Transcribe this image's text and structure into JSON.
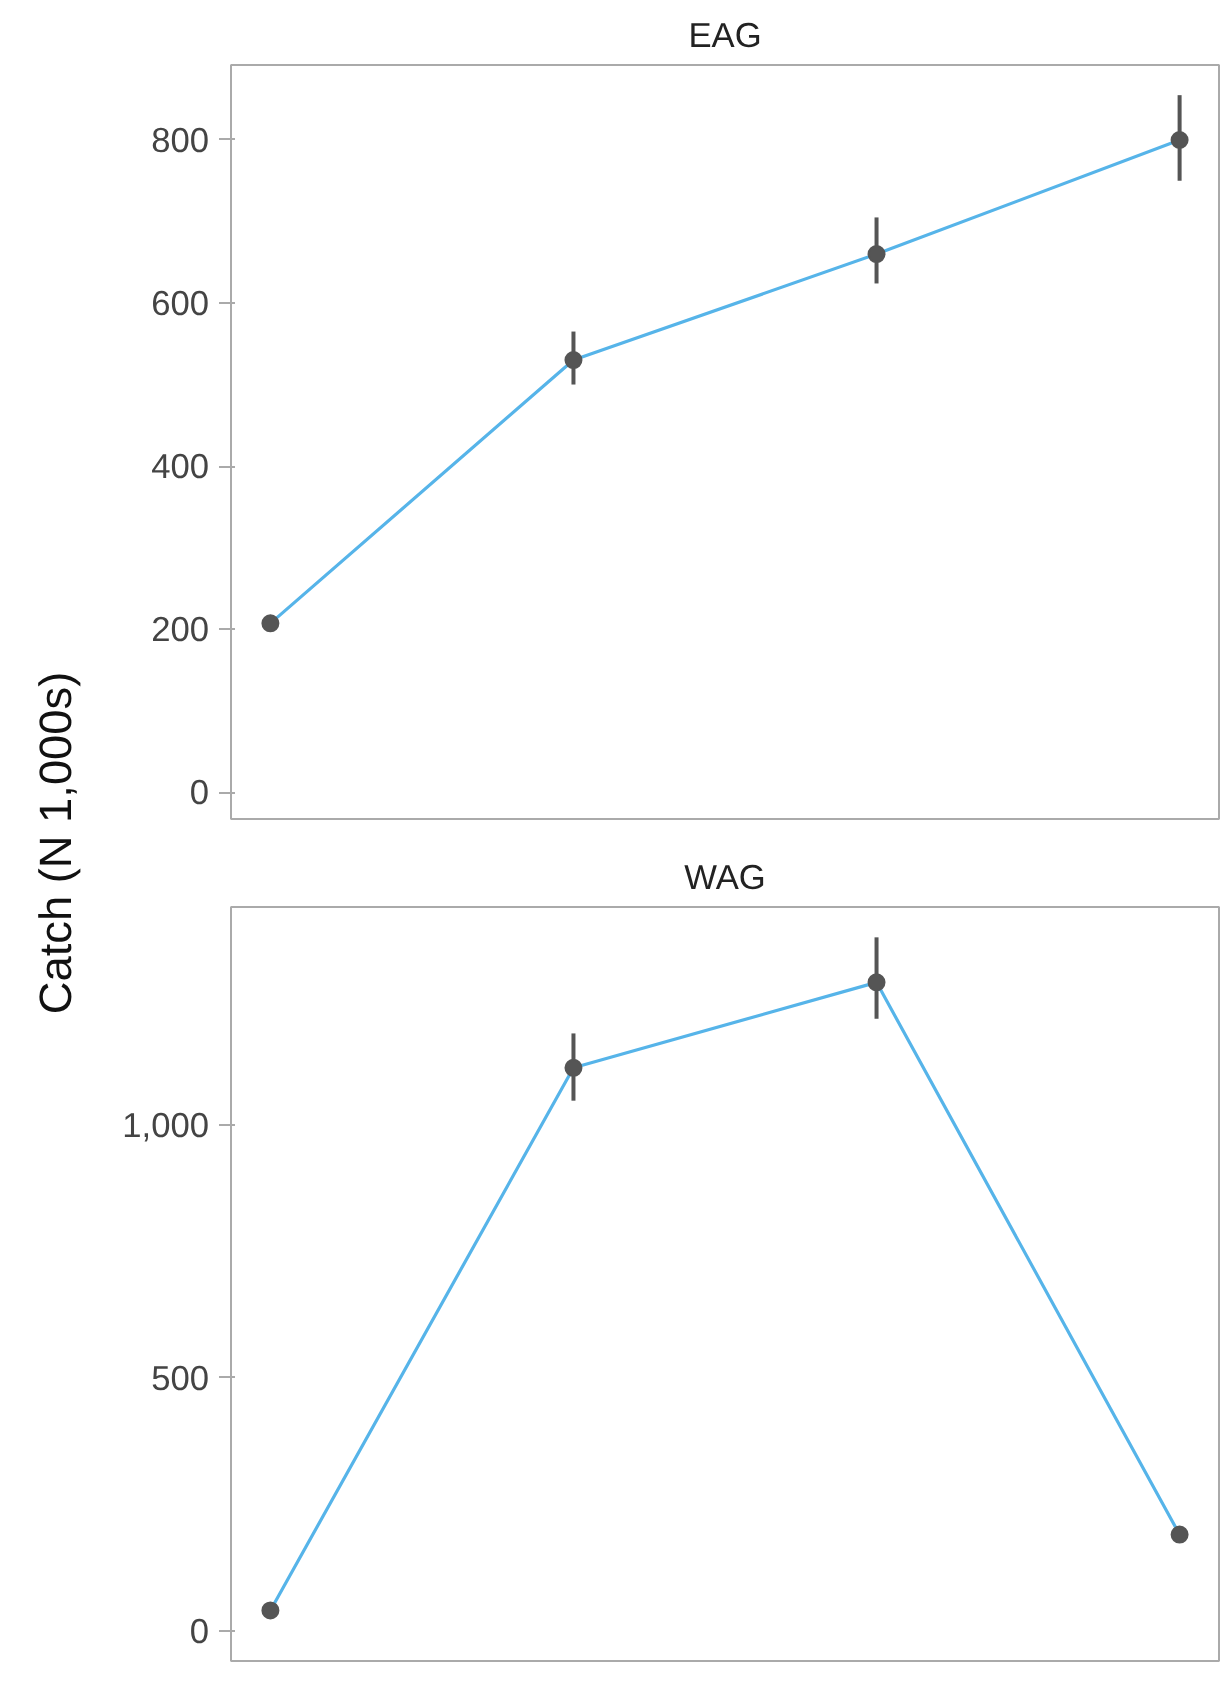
{
  "chart_data": [
    {
      "type": "line",
      "title": "EAG",
      "ylabel": "Catch (N 1,000s)",
      "categories": [
        null,
        null,
        null,
        null
      ],
      "grid": false,
      "marker": "circle",
      "series": [
        {
          "color": "#56b4e9",
          "values": [
            207,
            530,
            660,
            800
          ],
          "errors": [
            null,
            [
              500,
              565
            ],
            [
              624,
              705
            ],
            [
              750,
              855
            ]
          ]
        }
      ],
      "ylim": [
        -33,
        892
      ],
      "yticks": [
        0,
        200,
        400,
        600,
        800
      ],
      "tick_labels": "y"
    },
    {
      "type": "line",
      "title": "WAG",
      "categories": [
        null,
        null,
        null,
        null
      ],
      "grid": false,
      "marker": "circle",
      "series": [
        {
          "color": "#56b4e9",
          "values": [
            40,
            1113,
            1282,
            190
          ],
          "errors": [
            null,
            [
              1048,
              1181
            ],
            [
              1210,
              1371
            ],
            null
          ]
        }
      ],
      "ylim": [
        -60,
        1431
      ],
      "yticks": [
        0,
        {
          "value": 500,
          "label": "500"
        },
        {
          "value": 1000,
          "label": "1,000"
        }
      ],
      "tick_labels": "y"
    }
  ]
}
